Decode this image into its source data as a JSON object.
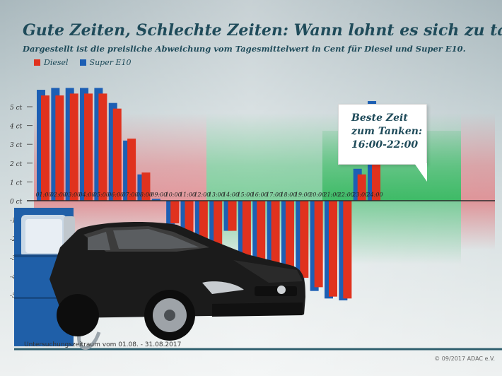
{
  "header": {
    "title": "Gute Zeiten, Schlechte Zeiten: Wann lohnt es sich zu tanken?",
    "subtitle": "Dargestellt ist die preisliche Abweichung vom Tagesmittelwert in Cent für Diesel und Super E10."
  },
  "legend": [
    {
      "label": "Diesel",
      "color": "#e0321e"
    },
    {
      "label": "Super E10",
      "color": "#1d5fb4"
    }
  ],
  "callout": {
    "line1": "Beste Zeit",
    "line2": "zum Tanken:",
    "line3": "16:00-22:00"
  },
  "footer": {
    "note": "Untersuchungszeitraum vom 01.08. - 31.08.2017",
    "credit": "© 09/2017 ADAC e.V."
  },
  "chart_data": {
    "type": "bar",
    "title": "Gute Zeiten, Schlechte Zeiten: Wann lohnt es sich zu tanken?",
    "subtitle": "Dargestellt ist die preisliche Abweichung vom Tagesmittelwert in Cent für Diesel und Super E10.",
    "ylabel": "",
    "xlabel": "",
    "ylim": [
      -6,
      6
    ],
    "yticks": [
      5,
      4,
      3,
      2,
      1,
      0,
      -1,
      -2,
      -3,
      -4,
      -5
    ],
    "ytick_labels": [
      "5 ct",
      "4 ct",
      "3 ct",
      "2 ct",
      "1 ct",
      "0 ct",
      "-1 ct",
      "-2 ct",
      "-3 ct",
      "-4 ct",
      "-5 ct"
    ],
    "categories": [
      "01:00",
      "02:00",
      "03:00",
      "04:00",
      "05:00",
      "06:00",
      "07:00",
      "08:00",
      "09:00",
      "10:00",
      "11:00",
      "12:00",
      "13:00",
      "14:00",
      "15:00",
      "16:00",
      "17:00",
      "18:00",
      "19:00",
      "20:00",
      "21:00",
      "22:00",
      "23:00",
      "24:00"
    ],
    "series": [
      {
        "name": "Super E10",
        "color": "#1d5fb4",
        "values": [
          5.9,
          6.0,
          6.0,
          6.0,
          6.0,
          5.2,
          3.2,
          1.4,
          0.1,
          -1.4,
          -2.2,
          -3.6,
          -2.7,
          -1.6,
          -3.1,
          -4.2,
          -4.8,
          -3.9,
          -4.3,
          -4.8,
          -5.2,
          -5.3,
          1.7,
          5.3
        ]
      },
      {
        "name": "Diesel",
        "color": "#e0321e",
        "values": [
          5.6,
          5.6,
          5.7,
          5.7,
          5.7,
          4.9,
          3.3,
          1.5,
          0.0,
          -1.2,
          -1.8,
          -3.4,
          -2.6,
          -1.6,
          -2.9,
          -4.0,
          -4.6,
          -3.8,
          -4.1,
          -4.6,
          -5.1,
          -5.2,
          1.4,
          4.9
        ]
      }
    ],
    "grid": false,
    "legend_position": "top-left"
  }
}
